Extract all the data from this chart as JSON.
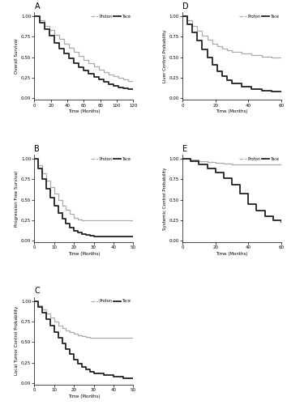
{
  "background_color": "#ffffff",
  "legend_labels": [
    "Proton",
    "Tace"
  ],
  "proton_color": "#aaaaaa",
  "tace_color": "#222222",
  "proton_lw": 0.9,
  "tace_lw": 1.3,
  "panels": {
    "A": {
      "title": "A",
      "ylabel": "Overall Survival",
      "xlabel": "Time (Months)",
      "xlim": [
        0,
        120
      ],
      "ylim": [
        -0.02,
        1.05
      ],
      "xticks": [
        0,
        20,
        40,
        60,
        80,
        100,
        120
      ],
      "yticks": [
        0.0,
        0.25,
        0.5,
        0.75,
        1.0
      ],
      "proton_x": [
        0,
        6,
        12,
        18,
        24,
        30,
        36,
        42,
        48,
        54,
        60,
        66,
        72,
        78,
        84,
        90,
        96,
        102,
        108,
        114,
        120
      ],
      "proton_y": [
        1.0,
        0.95,
        0.88,
        0.83,
        0.77,
        0.72,
        0.67,
        0.62,
        0.57,
        0.52,
        0.47,
        0.43,
        0.39,
        0.35,
        0.32,
        0.29,
        0.27,
        0.25,
        0.23,
        0.21,
        0.21
      ],
      "tace_x": [
        0,
        6,
        12,
        18,
        24,
        30,
        36,
        42,
        48,
        54,
        60,
        66,
        72,
        78,
        84,
        90,
        96,
        102,
        108,
        114,
        120
      ],
      "tace_y": [
        1.0,
        0.92,
        0.84,
        0.76,
        0.68,
        0.61,
        0.55,
        0.49,
        0.43,
        0.38,
        0.34,
        0.3,
        0.26,
        0.23,
        0.2,
        0.17,
        0.15,
        0.13,
        0.12,
        0.11,
        0.11
      ]
    },
    "B": {
      "title": "B",
      "ylabel": "Progression Free Survival",
      "xlabel": "Time (Months)",
      "xlim": [
        0,
        50
      ],
      "ylim": [
        -0.02,
        1.05
      ],
      "xticks": [
        0,
        10,
        20,
        30,
        40,
        50
      ],
      "yticks": [
        0.0,
        0.25,
        0.5,
        0.75,
        1.0
      ],
      "proton_x": [
        0,
        2,
        4,
        6,
        8,
        10,
        12,
        14,
        16,
        18,
        20,
        22,
        24,
        26,
        28,
        30,
        35,
        40,
        50
      ],
      "proton_y": [
        1.0,
        0.92,
        0.82,
        0.73,
        0.65,
        0.57,
        0.5,
        0.43,
        0.38,
        0.33,
        0.28,
        0.26,
        0.25,
        0.25,
        0.25,
        0.25,
        0.25,
        0.25,
        0.25
      ],
      "tace_x": [
        0,
        2,
        4,
        6,
        8,
        10,
        12,
        14,
        16,
        18,
        20,
        22,
        24,
        26,
        28,
        30,
        35,
        40,
        50
      ],
      "tace_y": [
        1.0,
        0.88,
        0.75,
        0.63,
        0.52,
        0.43,
        0.34,
        0.27,
        0.21,
        0.16,
        0.12,
        0.1,
        0.08,
        0.07,
        0.06,
        0.05,
        0.05,
        0.05,
        0.05
      ]
    },
    "C": {
      "title": "C",
      "ylabel": "Local Tumor Control Probability",
      "xlabel": "Time (Months)",
      "xlim": [
        0,
        50
      ],
      "ylim": [
        -0.02,
        1.05
      ],
      "xticks": [
        0,
        10,
        20,
        30,
        40,
        50
      ],
      "yticks": [
        0.0,
        0.25,
        0.5,
        0.75,
        1.0
      ],
      "proton_x": [
        0,
        2,
        4,
        6,
        8,
        10,
        12,
        14,
        16,
        18,
        20,
        22,
        24,
        26,
        28,
        30,
        35,
        40,
        45,
        50
      ],
      "proton_y": [
        1.0,
        0.95,
        0.9,
        0.85,
        0.8,
        0.75,
        0.7,
        0.67,
        0.64,
        0.62,
        0.6,
        0.58,
        0.57,
        0.56,
        0.55,
        0.55,
        0.55,
        0.55,
        0.55,
        0.55
      ],
      "tace_x": [
        0,
        2,
        4,
        6,
        8,
        10,
        12,
        14,
        16,
        18,
        20,
        22,
        24,
        26,
        28,
        30,
        35,
        40,
        45,
        50
      ],
      "tace_y": [
        1.0,
        0.93,
        0.86,
        0.78,
        0.7,
        0.62,
        0.55,
        0.48,
        0.41,
        0.35,
        0.29,
        0.24,
        0.2,
        0.17,
        0.14,
        0.12,
        0.1,
        0.08,
        0.06,
        0.05
      ]
    },
    "D": {
      "title": "D",
      "ylabel": "Liver Control Probability",
      "xlabel": "Time (Months)",
      "xlim": [
        0,
        60
      ],
      "ylim": [
        -0.02,
        1.05
      ],
      "xticks": [
        0,
        20,
        40,
        60
      ],
      "yticks": [
        0.0,
        0.25,
        0.5,
        0.75,
        1.0
      ],
      "proton_x": [
        0,
        3,
        6,
        9,
        12,
        15,
        18,
        21,
        24,
        27,
        30,
        36,
        42,
        48,
        54,
        60
      ],
      "proton_y": [
        1.0,
        0.95,
        0.88,
        0.82,
        0.76,
        0.71,
        0.67,
        0.64,
        0.61,
        0.59,
        0.57,
        0.55,
        0.53,
        0.51,
        0.5,
        0.5
      ],
      "tace_x": [
        0,
        3,
        6,
        9,
        12,
        15,
        18,
        21,
        24,
        27,
        30,
        36,
        42,
        48,
        54,
        60
      ],
      "tace_y": [
        1.0,
        0.9,
        0.8,
        0.7,
        0.6,
        0.5,
        0.41,
        0.33,
        0.27,
        0.22,
        0.18,
        0.14,
        0.11,
        0.09,
        0.08,
        0.08
      ]
    },
    "E": {
      "title": "E",
      "ylabel": "Systemic Control Probability",
      "xlabel": "Time (Months)",
      "xlim": [
        0,
        60
      ],
      "ylim": [
        -0.02,
        1.05
      ],
      "xticks": [
        0,
        20,
        40,
        60
      ],
      "yticks": [
        0.0,
        0.25,
        0.5,
        0.75,
        1.0
      ],
      "proton_x": [
        0,
        5,
        10,
        15,
        20,
        25,
        30,
        40,
        50,
        60
      ],
      "proton_y": [
        1.0,
        0.99,
        0.97,
        0.96,
        0.95,
        0.94,
        0.93,
        0.93,
        0.93,
        0.93
      ],
      "tace_x": [
        0,
        5,
        10,
        15,
        20,
        25,
        30,
        35,
        40,
        45,
        50,
        55,
        60
      ],
      "tace_y": [
        1.0,
        0.97,
        0.93,
        0.88,
        0.83,
        0.76,
        0.68,
        0.57,
        0.45,
        0.37,
        0.3,
        0.25,
        0.22
      ]
    }
  }
}
